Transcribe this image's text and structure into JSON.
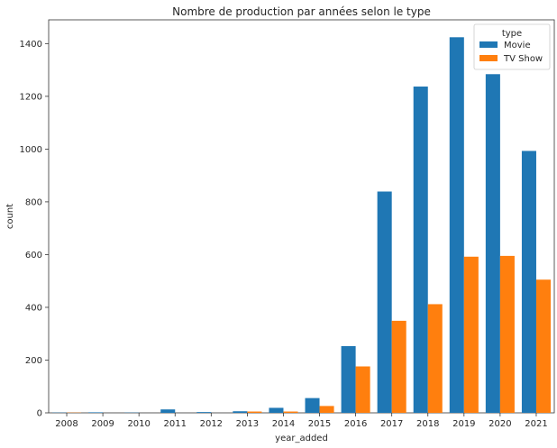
{
  "chart_data": {
    "type": "bar",
    "title": "Nombre de production par années selon le type",
    "xlabel": "year_added",
    "ylabel": "count",
    "categories": [
      "2008",
      "2009",
      "2010",
      "2011",
      "2012",
      "2013",
      "2014",
      "2015",
      "2016",
      "2017",
      "2018",
      "2019",
      "2020",
      "2021"
    ],
    "series": [
      {
        "name": "Movie",
        "color": "#1f77b4",
        "values": [
          1,
          2,
          1,
          13,
          3,
          6,
          19,
          56,
          253,
          839,
          1237,
          1424,
          1284,
          993
        ]
      },
      {
        "name": "TV Show",
        "color": "#ff7f0e",
        "values": [
          1,
          0,
          0,
          0,
          0,
          5,
          5,
          26,
          176,
          349,
          412,
          592,
          595,
          505
        ]
      }
    ],
    "ylim": [
      0,
      1490
    ],
    "yticks": [
      0,
      200,
      400,
      600,
      800,
      1000,
      1200,
      1400
    ],
    "legend": {
      "title": "type",
      "placement": "top-right"
    },
    "grid": false
  }
}
